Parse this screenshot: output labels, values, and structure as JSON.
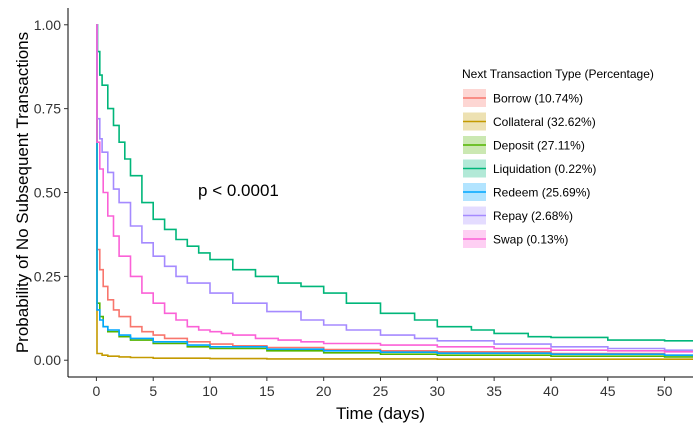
{
  "chart_data": {
    "type": "line",
    "title": "",
    "xlabel": "Time (days)",
    "ylabel": "Probability of No Subsequent Transactions",
    "xlim": [
      -2.5,
      52.5
    ],
    "ylim": [
      -0.05,
      1.05
    ],
    "xticks": [
      0,
      5,
      10,
      15,
      20,
      25,
      30,
      35,
      40,
      45,
      50
    ],
    "yticks": [
      0.0,
      0.25,
      0.5,
      0.75,
      1.0
    ],
    "ytick_labels": [
      "0.00",
      "0.25",
      "0.50",
      "0.75",
      "1.00"
    ],
    "grid": false,
    "step": true,
    "annotation": {
      "text": "p < 0.0001",
      "x": 12.5,
      "y": 0.49
    },
    "legend": {
      "title": "Next Transaction Type (Percentage)",
      "position": "right"
    },
    "series": [
      {
        "name": "Borrow (10.74%)",
        "color": "#F8766D",
        "x": [
          0,
          0.05,
          0.3,
          0.6,
          1,
          1.5,
          2,
          3,
          4,
          5,
          6,
          8,
          10,
          12,
          15,
          20,
          25,
          30,
          40,
          50,
          52.5
        ],
        "y": [
          1.0,
          0.33,
          0.27,
          0.22,
          0.18,
          0.15,
          0.13,
          0.1,
          0.085,
          0.075,
          0.065,
          0.055,
          0.048,
          0.043,
          0.038,
          0.032,
          0.028,
          0.025,
          0.02,
          0.015,
          0.015
        ]
      },
      {
        "name": "Collateral (32.62%)",
        "color": "#C49A00",
        "x": [
          0,
          0.05,
          0.5,
          1,
          2,
          3,
          5,
          10,
          15,
          20,
          30,
          40,
          50,
          52.5
        ],
        "y": [
          1.0,
          0.02,
          0.015,
          0.012,
          0.01,
          0.008,
          0.006,
          0.005,
          0.004,
          0.004,
          0.003,
          0.003,
          0.003,
          0.003
        ]
      },
      {
        "name": "Deposit (27.11%)",
        "color": "#53B400",
        "x": [
          0,
          0.05,
          0.3,
          0.6,
          1,
          2,
          3,
          5,
          8,
          10,
          15,
          20,
          25,
          30,
          40,
          50,
          52.5
        ],
        "y": [
          1.0,
          0.17,
          0.13,
          0.1,
          0.085,
          0.07,
          0.06,
          0.05,
          0.04,
          0.035,
          0.028,
          0.022,
          0.018,
          0.015,
          0.012,
          0.01,
          0.01
        ]
      },
      {
        "name": "Liquidation (0.22%)",
        "color": "#00B67A",
        "x": [
          0,
          0.1,
          0.3,
          0.5,
          1,
          1.5,
          2,
          2.5,
          3,
          4,
          5,
          6,
          7,
          8,
          9,
          10,
          12,
          14,
          16,
          18,
          20,
          22,
          25,
          28,
          30,
          33,
          35,
          38,
          40,
          45,
          50,
          52.5
        ],
        "y": [
          1.0,
          0.92,
          0.85,
          0.82,
          0.75,
          0.7,
          0.65,
          0.6,
          0.55,
          0.47,
          0.42,
          0.39,
          0.36,
          0.34,
          0.32,
          0.3,
          0.27,
          0.25,
          0.23,
          0.22,
          0.2,
          0.17,
          0.14,
          0.12,
          0.1,
          0.09,
          0.08,
          0.07,
          0.068,
          0.06,
          0.058,
          0.058
        ]
      },
      {
        "name": "Redeem (25.69%)",
        "color": "#00A6FF",
        "x": [
          0,
          0.05,
          0.3,
          0.6,
          1,
          2,
          3,
          5,
          8,
          10,
          15,
          20,
          25,
          30,
          40,
          50,
          52.5
        ],
        "y": [
          1.0,
          0.15,
          0.12,
          0.1,
          0.09,
          0.075,
          0.065,
          0.055,
          0.045,
          0.04,
          0.033,
          0.028,
          0.024,
          0.021,
          0.018,
          0.015,
          0.015
        ]
      },
      {
        "name": "Repay (2.68%)",
        "color": "#A58AFF",
        "x": [
          0,
          0.05,
          0.3,
          0.5,
          1,
          1.5,
          2,
          3,
          4,
          5,
          6,
          7,
          8,
          10,
          12,
          15,
          18,
          20,
          22,
          25,
          28,
          30,
          35,
          40,
          45,
          50,
          52.5
        ],
        "y": [
          1.0,
          0.72,
          0.66,
          0.62,
          0.56,
          0.51,
          0.47,
          0.4,
          0.35,
          0.31,
          0.28,
          0.25,
          0.23,
          0.2,
          0.17,
          0.145,
          0.12,
          0.105,
          0.09,
          0.075,
          0.065,
          0.058,
          0.048,
          0.04,
          0.035,
          0.03,
          0.03
        ]
      },
      {
        "name": "Swap (0.13%)",
        "color": "#FB61D7",
        "x": [
          0,
          0.05,
          0.3,
          0.6,
          1,
          1.5,
          2,
          3,
          4,
          5,
          6,
          7,
          8,
          9,
          10,
          11,
          12,
          14,
          16,
          18,
          20,
          25,
          30,
          35,
          40,
          45,
          50,
          52.5
        ],
        "y": [
          1.0,
          0.65,
          0.57,
          0.5,
          0.43,
          0.37,
          0.31,
          0.25,
          0.2,
          0.17,
          0.14,
          0.12,
          0.1,
          0.09,
          0.085,
          0.08,
          0.075,
          0.065,
          0.06,
          0.055,
          0.05,
          0.045,
          0.04,
          0.035,
          0.03,
          0.028,
          0.025,
          0.025
        ]
      }
    ]
  }
}
